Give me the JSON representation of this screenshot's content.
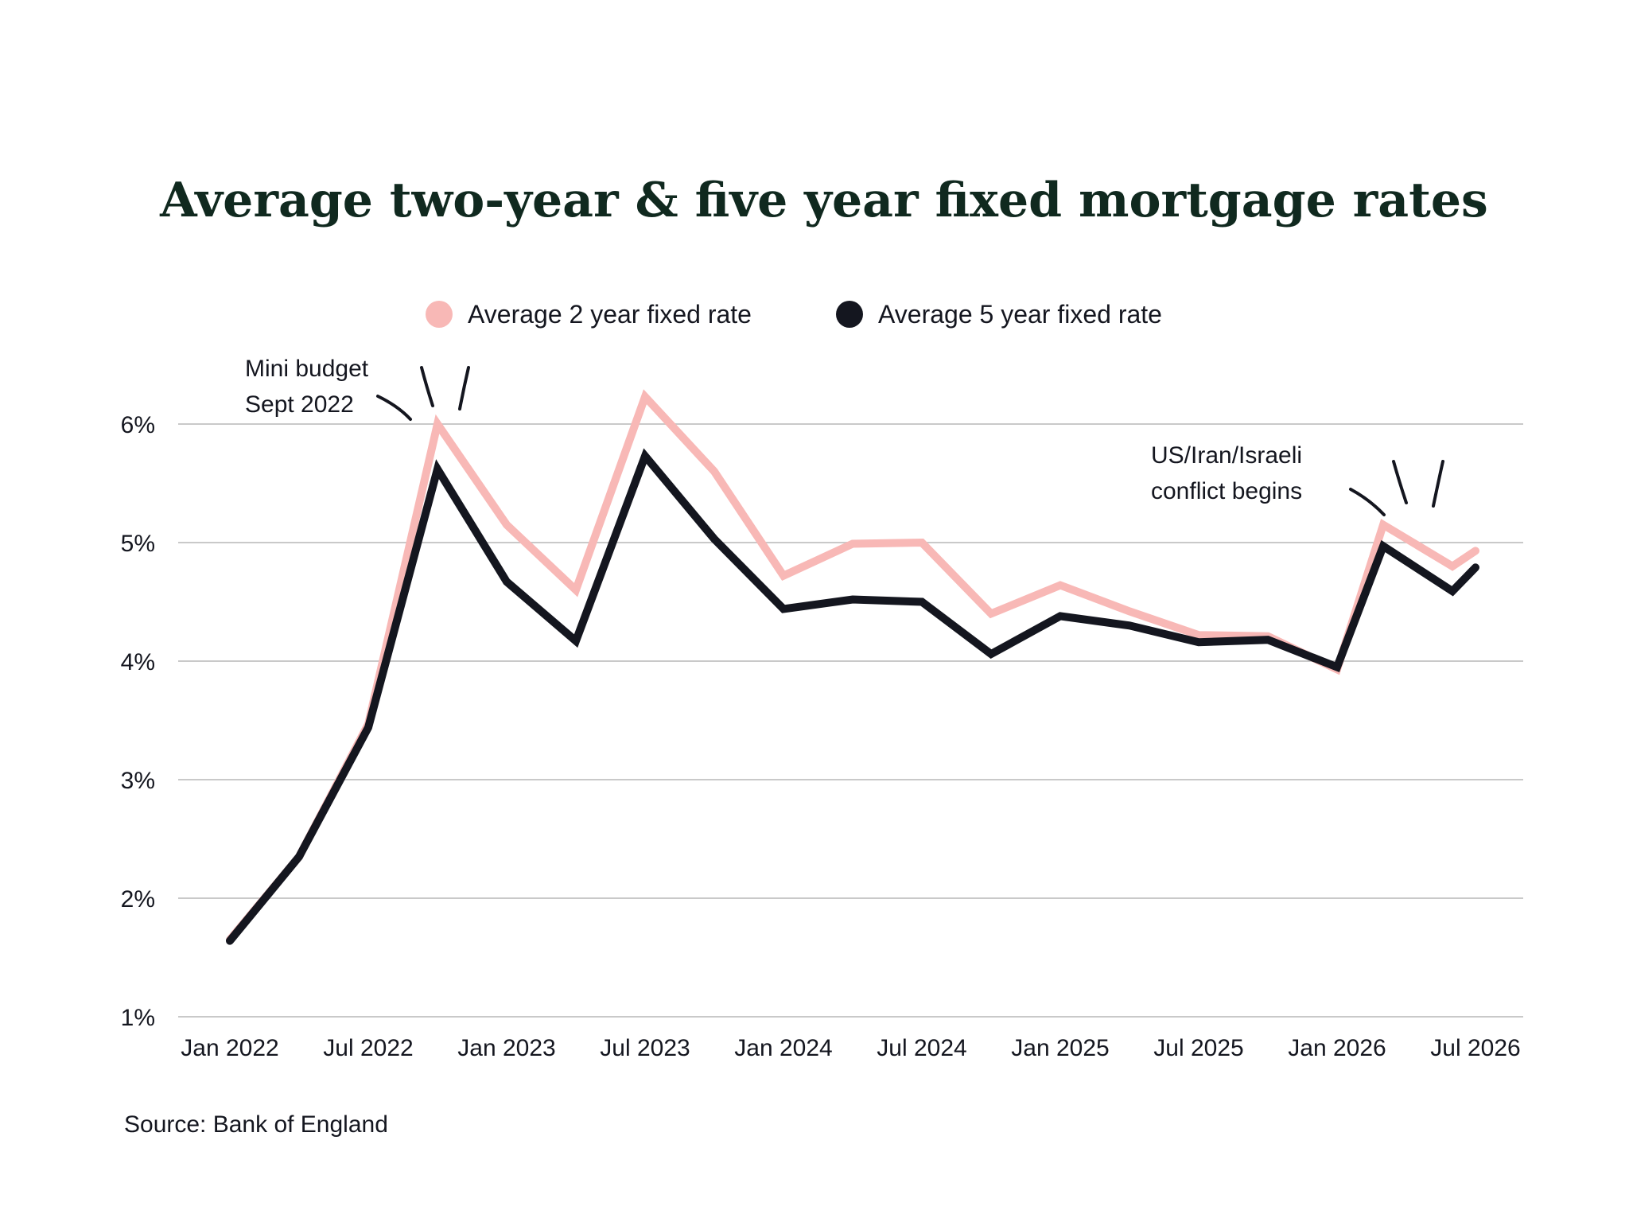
{
  "chart_data": {
    "type": "line",
    "title": "Average two-year & five year fixed mortgage rates",
    "x_tick_labels": [
      "Jan 2022",
      "Jul 2022",
      "Jan 2023",
      "Jul 2023",
      "Jan 2024",
      "Jul 2024",
      "Jan 2025",
      "Jul 2025",
      "Jan 2026",
      "Jul 2026"
    ],
    "y_tick_labels": [
      "1%",
      "2%",
      "3%",
      "4%",
      "5%",
      "6%"
    ],
    "y_ticks": [
      1,
      2,
      3,
      4,
      5,
      6
    ],
    "ylim": [
      1,
      6.5
    ],
    "xlim": [
      "2022-01",
      "2026-07"
    ],
    "grid": "horizontal",
    "legend_position": "top-center",
    "x": [
      "2022-01",
      "2022-04",
      "2022-07",
      "2022-10",
      "2023-01",
      "2023-04",
      "2023-07",
      "2023-10",
      "2024-01",
      "2024-04",
      "2024-07",
      "2024-10",
      "2025-01",
      "2025-04",
      "2025-07",
      "2025-10",
      "2026-01",
      "2026-03",
      "2026-06",
      "2026-07"
    ],
    "series": [
      {
        "name": "Average 2 year fixed rate",
        "color": "#f8b8b6",
        "values": [
          1.65,
          2.35,
          3.47,
          6.0,
          5.15,
          4.6,
          6.23,
          5.6,
          4.72,
          4.99,
          5.0,
          4.4,
          4.64,
          4.42,
          4.22,
          4.21,
          3.93,
          5.15,
          4.8,
          4.93
        ]
      },
      {
        "name": "Average 5 year fixed rate",
        "color": "#14161f",
        "values": [
          1.64,
          2.35,
          3.44,
          5.62,
          4.67,
          4.17,
          5.73,
          5.03,
          4.44,
          4.52,
          4.5,
          4.06,
          4.38,
          4.3,
          4.16,
          4.18,
          3.95,
          4.97,
          4.59,
          4.79
        ]
      }
    ],
    "annotations": [
      {
        "line1": "Mini budget",
        "line2": "Sept 2022",
        "x": "2022-10",
        "y": 6.0
      },
      {
        "line1": "US/Iran/Israeli",
        "line2": "conflict begins",
        "x": "2026-03",
        "y": 5.15
      }
    ],
    "source": "Source: Bank of England"
  }
}
